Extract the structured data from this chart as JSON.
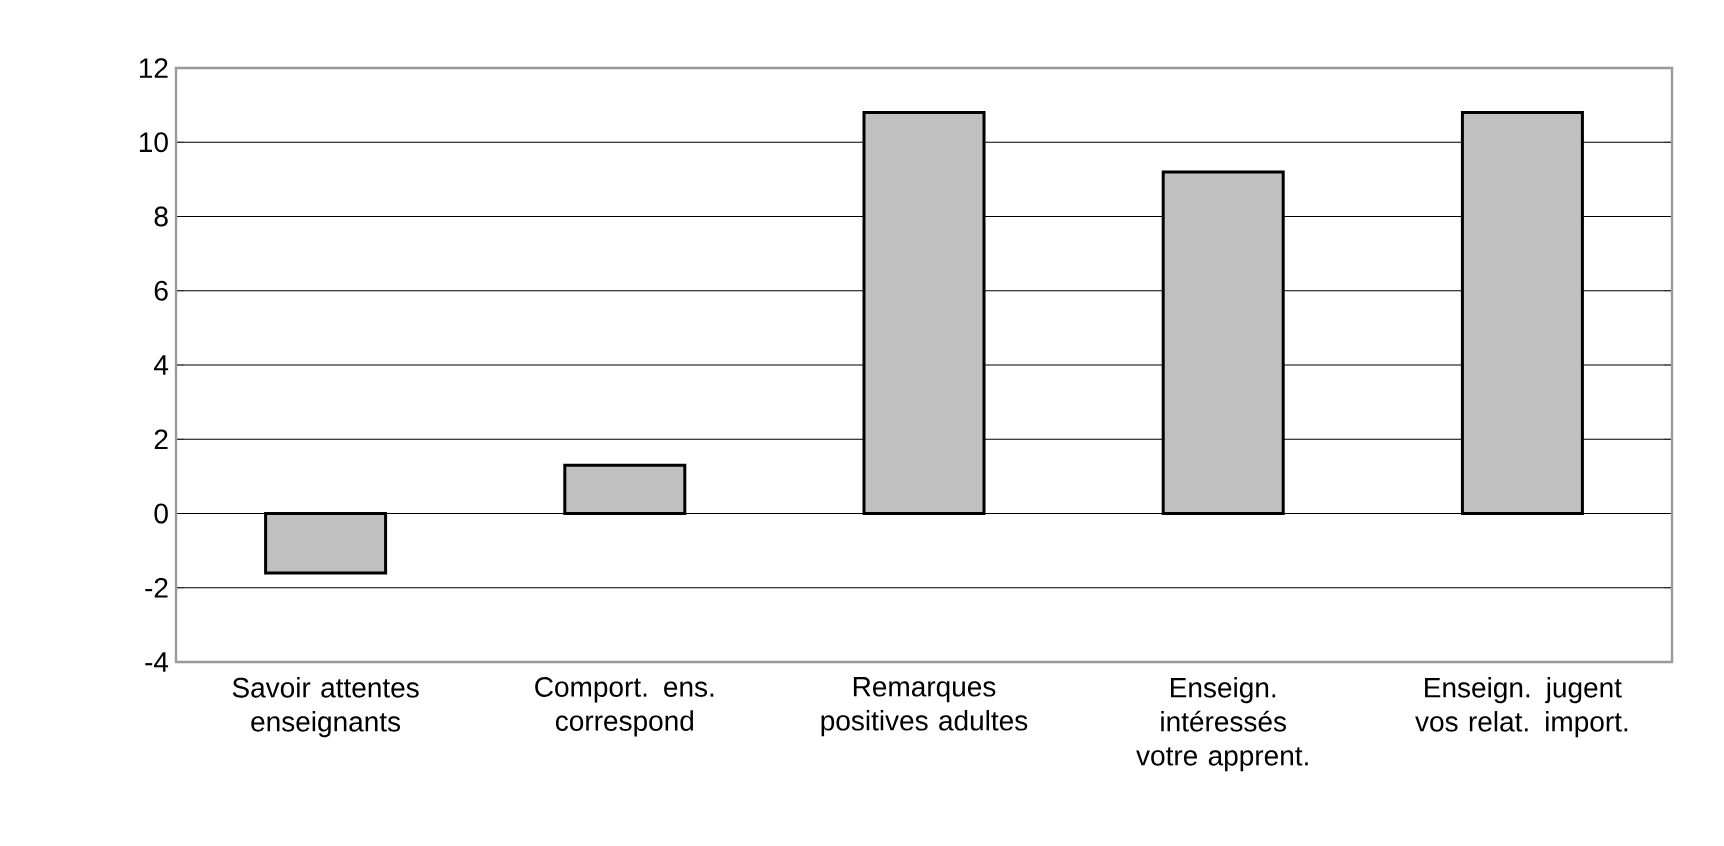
{
  "chart_data": {
    "type": "bar",
    "categories": [
      "Savoir attentes enseignants",
      "Comport. ens. correspond",
      "Remarques positives adultes",
      "Enseign. intéressés votre apprent.",
      "Enseign. jugent vos relat. import."
    ],
    "values": [
      -1.6,
      1.3,
      10.8,
      9.2,
      10.8
    ],
    "color": "#c0c0c0",
    "ylim": [
      -4,
      12
    ],
    "yticks": [
      -4,
      -2,
      0,
      2,
      4,
      6,
      8,
      10,
      12
    ],
    "grid": "y"
  }
}
